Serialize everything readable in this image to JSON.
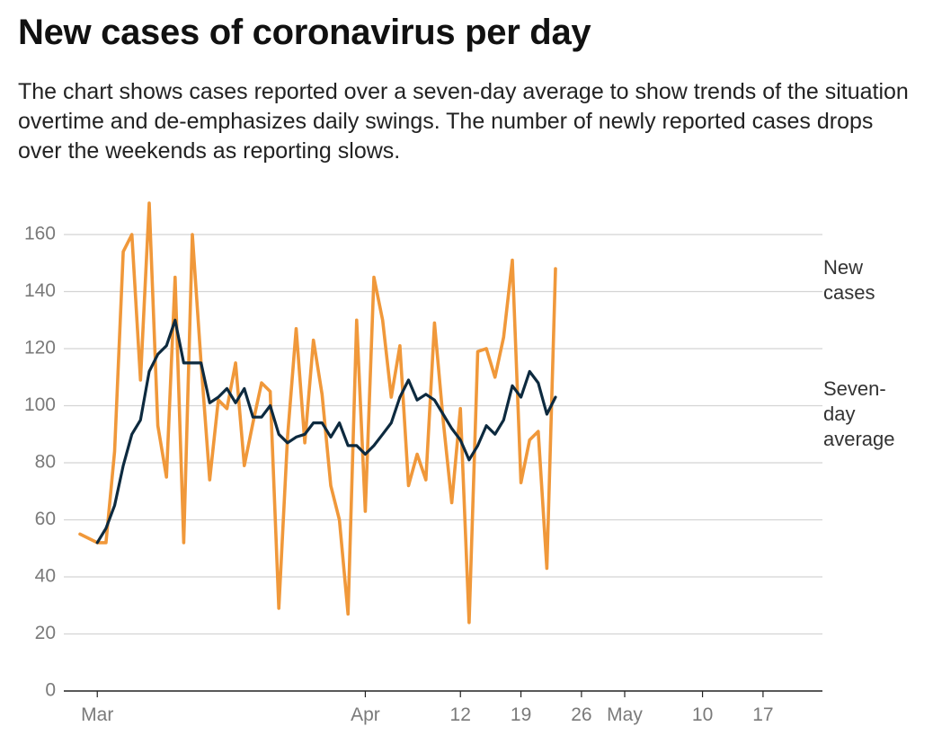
{
  "chart_data": {
    "type": "line",
    "title": "New cases of coronavirus per day",
    "subtitle": "The chart shows cases reported over a seven-day average to show trends of the situation overtime and de-emphasizes daily swings. The number of newly reported cases drops over the weekends as reporting slows.",
    "xlabel": "",
    "ylabel": "",
    "ylim": [
      0,
      160
    ],
    "yticks": [
      0,
      20,
      40,
      60,
      80,
      100,
      120,
      140,
      160
    ],
    "xlim": [
      "2020-02-28",
      "2020-05-22"
    ],
    "xticks": [
      {
        "date": "2020-03-01",
        "label": "Mar"
      },
      {
        "date": "2020-04-01",
        "label": "Apr"
      },
      {
        "date": "2020-04-12",
        "label": "12"
      },
      {
        "date": "2020-04-19",
        "label": "19"
      },
      {
        "date": "2020-04-26",
        "label": "26"
      },
      {
        "date": "2020-05-01",
        "label": "May"
      },
      {
        "date": "2020-05-10",
        "label": "10"
      },
      {
        "date": "2020-05-17",
        "label": "17"
      }
    ],
    "grid": "horizontal",
    "legend": "inline labels at right end of lines",
    "series": [
      {
        "name": "New cases",
        "label_lines": [
          "New",
          "cases"
        ],
        "color": "#f0983a",
        "points": [
          [
            "2020-02-28",
            55
          ],
          [
            "2020-03-01",
            52
          ],
          [
            "2020-03-02",
            52
          ],
          [
            "2020-03-03",
            84
          ],
          [
            "2020-03-04",
            154
          ],
          [
            "2020-03-05",
            160
          ],
          [
            "2020-03-06",
            109
          ],
          [
            "2020-03-07",
            171
          ],
          [
            "2020-03-08",
            93
          ],
          [
            "2020-03-09",
            75
          ],
          [
            "2020-03-10",
            145
          ],
          [
            "2020-03-11",
            52
          ],
          [
            "2020-03-12",
            160
          ],
          [
            "2020-03-13",
            115
          ],
          [
            "2020-03-14",
            74
          ],
          [
            "2020-03-15",
            102
          ],
          [
            "2020-03-16",
            99
          ],
          [
            "2020-03-17",
            115
          ],
          [
            "2020-03-18",
            79
          ],
          [
            "2020-03-19",
            94
          ],
          [
            "2020-03-20",
            108
          ],
          [
            "2020-03-21",
            105
          ],
          [
            "2020-03-22",
            29
          ],
          [
            "2020-03-23",
            89
          ],
          [
            "2020-03-24",
            127
          ],
          [
            "2020-03-25",
            87
          ],
          [
            "2020-03-26",
            123
          ],
          [
            "2020-03-27",
            104
          ],
          [
            "2020-03-28",
            72
          ],
          [
            "2020-03-29",
            60
          ],
          [
            "2020-03-30",
            27
          ],
          [
            "2020-03-31",
            130
          ],
          [
            "2020-04-01",
            63
          ],
          [
            "2020-04-02",
            145
          ],
          [
            "2020-04-03",
            130
          ],
          [
            "2020-04-04",
            103
          ],
          [
            "2020-04-05",
            121
          ],
          [
            "2020-04-06",
            72
          ],
          [
            "2020-04-07",
            83
          ],
          [
            "2020-04-08",
            74
          ],
          [
            "2020-04-09",
            129
          ],
          [
            "2020-04-10",
            95
          ],
          [
            "2020-04-11",
            66
          ],
          [
            "2020-04-12",
            99
          ],
          [
            "2020-04-13",
            24
          ],
          [
            "2020-04-14",
            119
          ],
          [
            "2020-04-15",
            120
          ],
          [
            "2020-04-16",
            110
          ],
          [
            "2020-04-17",
            124
          ],
          [
            "2020-04-18",
            151
          ],
          [
            "2020-04-19",
            73
          ],
          [
            "2020-04-20",
            88
          ],
          [
            "2020-04-21",
            91
          ],
          [
            "2020-04-22",
            43
          ],
          [
            "2020-04-23",
            148
          ]
        ]
      },
      {
        "name": "Seven-day average",
        "label_lines": [
          "Seven-",
          "day",
          "average"
        ],
        "color": "#0d2a3f",
        "points": [
          [
            "2020-03-01",
            52
          ],
          [
            "2020-03-02",
            57
          ],
          [
            "2020-03-03",
            65
          ],
          [
            "2020-03-04",
            79
          ],
          [
            "2020-03-05",
            90
          ],
          [
            "2020-03-06",
            95
          ],
          [
            "2020-03-07",
            112
          ],
          [
            "2020-03-08",
            118
          ],
          [
            "2020-03-09",
            121
          ],
          [
            "2020-03-10",
            130
          ],
          [
            "2020-03-11",
            115
          ],
          [
            "2020-03-12",
            115
          ],
          [
            "2020-03-13",
            115
          ],
          [
            "2020-03-14",
            101
          ],
          [
            "2020-03-15",
            103
          ],
          [
            "2020-03-16",
            106
          ],
          [
            "2020-03-17",
            101
          ],
          [
            "2020-03-18",
            106
          ],
          [
            "2020-03-19",
            96
          ],
          [
            "2020-03-20",
            96
          ],
          [
            "2020-03-21",
            100
          ],
          [
            "2020-03-22",
            90
          ],
          [
            "2020-03-23",
            87
          ],
          [
            "2020-03-24",
            89
          ],
          [
            "2020-03-25",
            90
          ],
          [
            "2020-03-26",
            94
          ],
          [
            "2020-03-27",
            94
          ],
          [
            "2020-03-28",
            89
          ],
          [
            "2020-03-29",
            94
          ],
          [
            "2020-03-30",
            86
          ],
          [
            "2020-03-31",
            86
          ],
          [
            "2020-04-01",
            83
          ],
          [
            "2020-04-02",
            86
          ],
          [
            "2020-04-03",
            90
          ],
          [
            "2020-04-04",
            94
          ],
          [
            "2020-04-05",
            103
          ],
          [
            "2020-04-06",
            109
          ],
          [
            "2020-04-07",
            102
          ],
          [
            "2020-04-08",
            104
          ],
          [
            "2020-04-09",
            102
          ],
          [
            "2020-04-10",
            97
          ],
          [
            "2020-04-11",
            92
          ],
          [
            "2020-04-12",
            88
          ],
          [
            "2020-04-13",
            81
          ],
          [
            "2020-04-14",
            86
          ],
          [
            "2020-04-15",
            93
          ],
          [
            "2020-04-16",
            90
          ],
          [
            "2020-04-17",
            95
          ],
          [
            "2020-04-18",
            107
          ],
          [
            "2020-04-19",
            103
          ],
          [
            "2020-04-20",
            112
          ],
          [
            "2020-04-21",
            108
          ],
          [
            "2020-04-22",
            97
          ],
          [
            "2020-04-23",
            103
          ]
        ]
      }
    ]
  }
}
